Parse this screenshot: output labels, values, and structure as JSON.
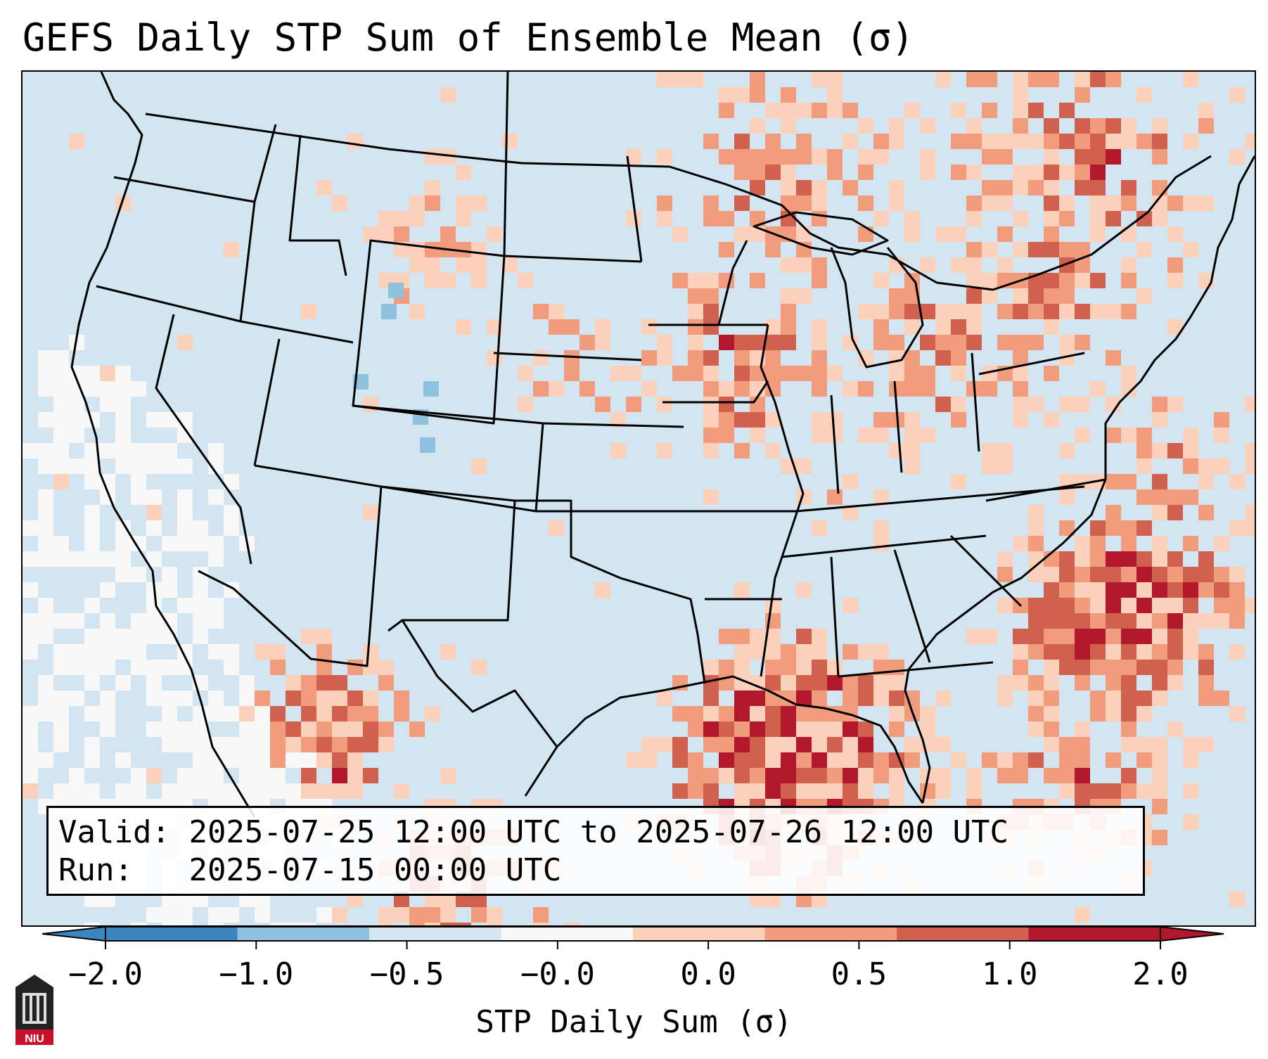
{
  "title": "GEFS Daily STP Sum of Ensemble Mean (σ)",
  "info": {
    "valid_label": "Valid:",
    "valid_value": "2025-07-25 12:00 UTC to 2025-07-26 12:00 UTC",
    "run_label": "Run:",
    "run_value": "2025-07-15 00:00 UTC"
  },
  "colorbar": {
    "label": "STP Daily Sum (σ)",
    "ticks": [
      "−2.0",
      "−1.0",
      "−0.5",
      "−0.0",
      "0.0",
      "0.5",
      "1.0",
      "2.0"
    ],
    "colors": [
      "#3b87bd",
      "#8ec1de",
      "#d2e5f0",
      "#f8f8f8",
      "#fbd1bb",
      "#f19c7c",
      "#d1614f",
      "#b2182b"
    ],
    "under_color": "#3b87bd",
    "over_color": "#b2182b"
  },
  "logo_text": "NIU",
  "colors": {
    "ocean_zero": "#d2e5f0",
    "white_bin": "#f8f8f8",
    "light_red": "#fbd1bb",
    "mid_red": "#f19c7c",
    "red": "#d1614f",
    "dark_red": "#b2182b",
    "light_blue": "#8ec1de"
  }
}
